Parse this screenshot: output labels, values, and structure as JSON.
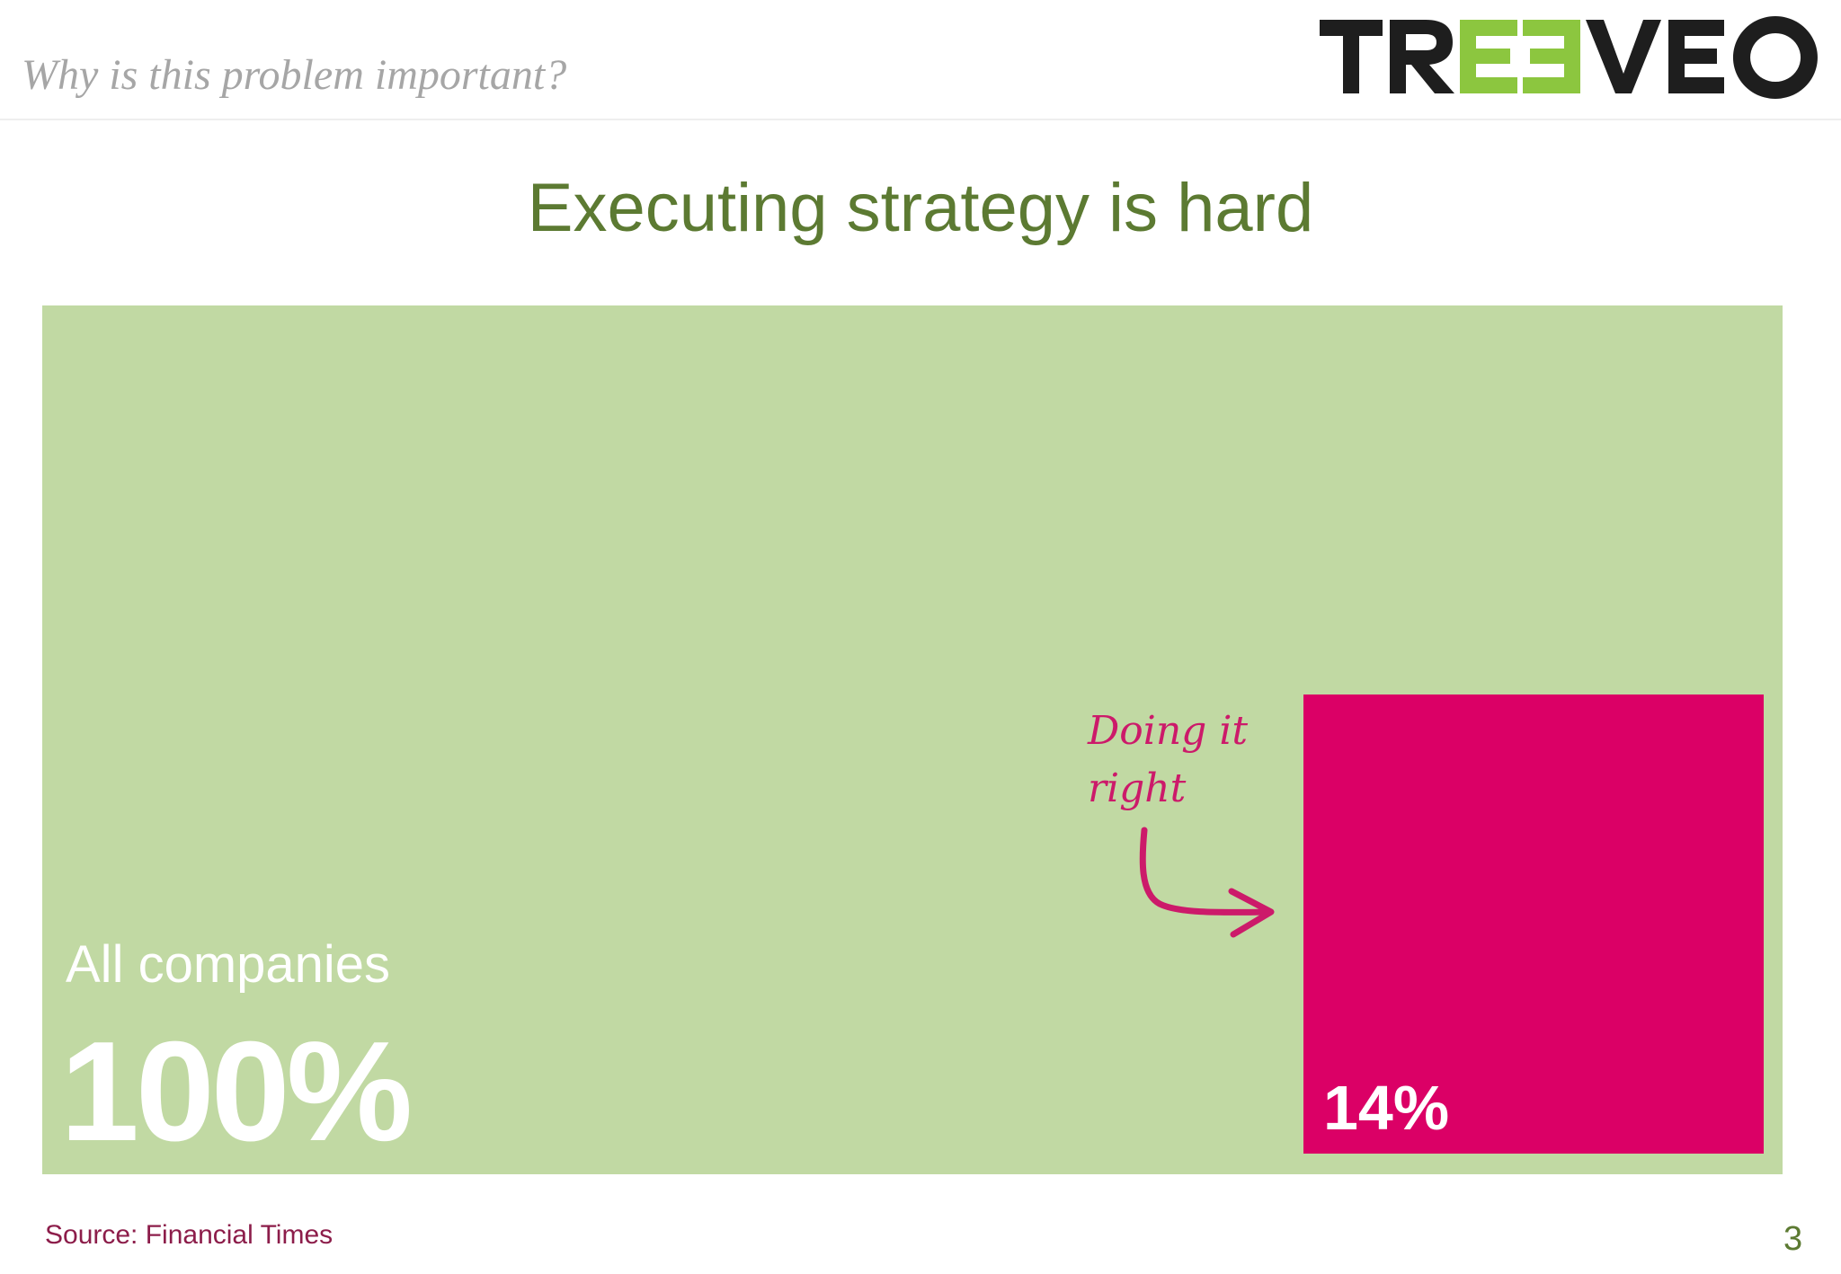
{
  "header": {
    "subtitle": "Why is this problem important?",
    "logo": {
      "text": "TREEVEO",
      "icon": "treeveo-logo-icon",
      "colors": {
        "dark": "#1e1e1e",
        "green": "#8cc63f"
      }
    }
  },
  "slide": {
    "title": "Executing strategy is hard"
  },
  "chart_data": {
    "type": "area-comparison",
    "series": [
      {
        "name": "All companies",
        "value": 100,
        "label": "100%",
        "color": "#c1d9a3"
      },
      {
        "name": "",
        "value": 14,
        "label": "14%",
        "color": "#db0066"
      }
    ],
    "annotation": {
      "text_line1": "Doing it",
      "text_line2": "right",
      "icon": "curved-arrow-icon",
      "color": "#cc1a6a"
    }
  },
  "footer": {
    "source": "Source: Financial Times",
    "page_number": "3"
  },
  "colors": {
    "title_green": "#5c7a32",
    "source_color": "#8c1d4a"
  }
}
